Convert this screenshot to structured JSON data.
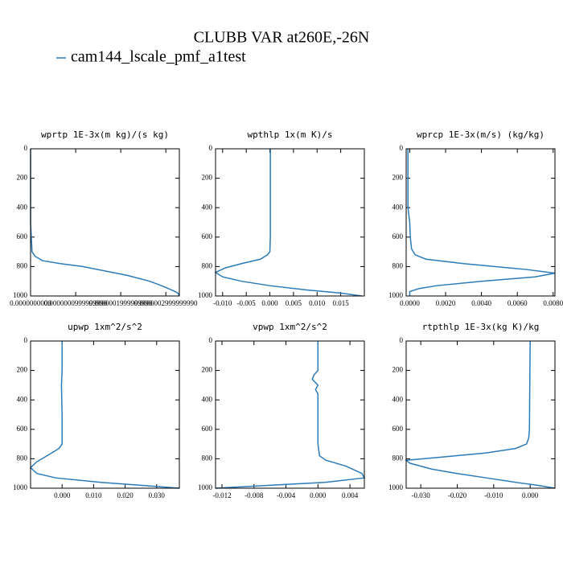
{
  "title": "CLUBB VAR at260E,-26N",
  "legend": {
    "name": "cam144_lscale_pmf_a1test",
    "color": "#2b7bb9"
  },
  "chart_data": [
    {
      "type": "line",
      "title": "wprtp  1E-3x(m kg)/(s kg)",
      "levels": [
        0,
        100,
        200,
        300,
        400,
        500,
        600,
        700,
        730,
        760,
        780,
        800,
        830,
        860,
        900,
        930,
        960,
        980,
        1000
      ],
      "values": [
        0,
        0,
        0,
        0,
        0,
        0,
        1.65e-09,
        3.3e-09,
        9.9e-09,
        2.64e-08,
        6.6e-08,
        1.155e-07,
        1.65e-07,
        2.145e-07,
        2.64e-07,
        2.904e-07,
        3.135e-07,
        3.267e-07,
        3.3e-07
      ],
      "xlim": [
        0,
        3.3e-07
      ],
      "xticks": [
        {
          "value": 0,
          "label": "0.0000000000"
        },
        {
          "value": 9.9999999e-08,
          "label": "0.0000000999999990"
        },
        {
          "value": 1.99999999e-07,
          "label": "0.0000001999999990"
        },
        {
          "value": 2.99999999e-07,
          "label": "0.0000002999999990"
        }
      ],
      "ylim": [
        1000,
        0
      ],
      "yticks": [
        0,
        200,
        400,
        600,
        800,
        1000
      ]
    },
    {
      "type": "line",
      "title": "wpthlp  1x(m K)/s",
      "levels": [
        0,
        200,
        400,
        600,
        700,
        720,
        750,
        780,
        810,
        840,
        870,
        900,
        930,
        960,
        980,
        1000
      ],
      "values": [
        0.0001,
        0.0001,
        0.0001,
        0.0001,
        0.0,
        -0.0005,
        -0.002,
        -0.006,
        -0.0095,
        -0.0115,
        -0.01,
        -0.006,
        0.0,
        0.008,
        0.015,
        0.0195
      ],
      "xlim": [
        -0.0115,
        0.02
      ],
      "xticks": [
        {
          "value": -0.01,
          "label": "-0.010"
        },
        {
          "value": -0.005,
          "label": "-0.005"
        },
        {
          "value": 0,
          "label": "0.000"
        },
        {
          "value": 0.005,
          "label": "0.005"
        },
        {
          "value": 0.01,
          "label": "0.010"
        },
        {
          "value": 0.015,
          "label": "0.015"
        }
      ],
      "ylim": [
        1000,
        0
      ],
      "yticks": [
        0,
        200,
        400,
        600,
        800,
        1000
      ]
    },
    {
      "type": "line",
      "title": "wprcp  1E-3x(m/s) (kg/kg)",
      "levels": [
        0,
        200,
        400,
        500,
        600,
        680,
        720,
        750,
        780,
        820,
        845,
        870,
        900,
        930,
        950,
        970,
        1000
      ],
      "values": [
        -0.0001,
        -0.0001,
        -0.0001,
        0.0,
        3e-05,
        0.0001,
        0.0003,
        0.0009,
        0.003,
        0.0065,
        0.0081,
        0.007,
        0.004,
        0.0015,
        0.0005,
        0.0,
        0.0
      ],
      "xlim": [
        -0.0002,
        0.0081
      ],
      "xticks": [
        {
          "value": 0,
          "label": "0.0000"
        },
        {
          "value": 0.002,
          "label": "0.0020"
        },
        {
          "value": 0.004,
          "label": "0.0040"
        },
        {
          "value": 0.006,
          "label": "0.0060"
        },
        {
          "value": 0.008,
          "label": "0.0080"
        }
      ],
      "ylim": [
        1000,
        0
      ],
      "yticks": [
        0,
        200,
        400,
        600,
        800,
        1000
      ]
    },
    {
      "type": "line",
      "title": "upwp  1xm^2/s^2",
      "levels": [
        0,
        200,
        300,
        500,
        700,
        730,
        770,
        820,
        860,
        900,
        930,
        960,
        980,
        1000
      ],
      "values": [
        0.0,
        0.0,
        -0.0002,
        0.0,
        0.0,
        -0.001,
        -0.004,
        -0.008,
        -0.01,
        -0.008,
        -0.002,
        0.012,
        0.025,
        0.0372
      ],
      "xlim": [
        -0.01,
        0.0372
      ],
      "xticks": [
        {
          "value": 0,
          "label": "0.000"
        },
        {
          "value": 0.01,
          "label": "0.010"
        },
        {
          "value": 0.02,
          "label": "0.020"
        },
        {
          "value": 0.03,
          "label": "0.030"
        }
      ],
      "ylim": [
        1000,
        0
      ],
      "yticks": [
        0,
        200,
        400,
        600,
        800,
        1000
      ]
    },
    {
      "type": "line",
      "title": "vpwp  1xm^2/s^2",
      "levels": [
        0,
        200,
        230,
        260,
        300,
        330,
        360,
        500,
        700,
        780,
        810,
        850,
        900,
        930,
        960,
        980,
        1000
      ],
      "values": [
        0.0,
        0.0,
        -0.0005,
        -0.0007,
        0.0,
        -0.0003,
        0.0,
        0.0,
        0.0,
        0.0002,
        0.001,
        0.0035,
        0.0055,
        0.0058,
        0.001,
        -0.006,
        -0.0128
      ],
      "xlim": [
        -0.0128,
        0.0058
      ],
      "xticks": [
        {
          "value": -0.012,
          "label": "-0.012"
        },
        {
          "value": -0.008,
          "label": "-0.008"
        },
        {
          "value": -0.004,
          "label": "-0.004"
        },
        {
          "value": 0,
          "label": "0.000"
        },
        {
          "value": 0.004,
          "label": "0.004"
        }
      ],
      "ylim": [
        1000,
        0
      ],
      "yticks": [
        0,
        200,
        400,
        600,
        800,
        1000
      ]
    },
    {
      "type": "line",
      "title": "rtpthlp  1E-3x(kg K)/kg",
      "levels": [
        0,
        300,
        600,
        660,
        700,
        730,
        760,
        790,
        810,
        830,
        870,
        900,
        930,
        960,
        980,
        1000
      ],
      "values": [
        0.0,
        -0.0001,
        -0.0002,
        -0.0004,
        -0.001,
        -0.004,
        -0.012,
        -0.025,
        -0.034,
        -0.033,
        -0.027,
        -0.02,
        -0.012,
        -0.004,
        0.002,
        0.0068
      ],
      "xlim": [
        -0.034,
        0.0068
      ],
      "xticks": [
        {
          "value": -0.03,
          "label": "-0.030"
        },
        {
          "value": -0.02,
          "label": "-0.020"
        },
        {
          "value": -0.01,
          "label": "-0.010"
        },
        {
          "value": 0,
          "label": "0.000"
        }
      ],
      "ylim": [
        1000,
        0
      ],
      "yticks": [
        0,
        200,
        400,
        600,
        800,
        1000
      ]
    }
  ]
}
